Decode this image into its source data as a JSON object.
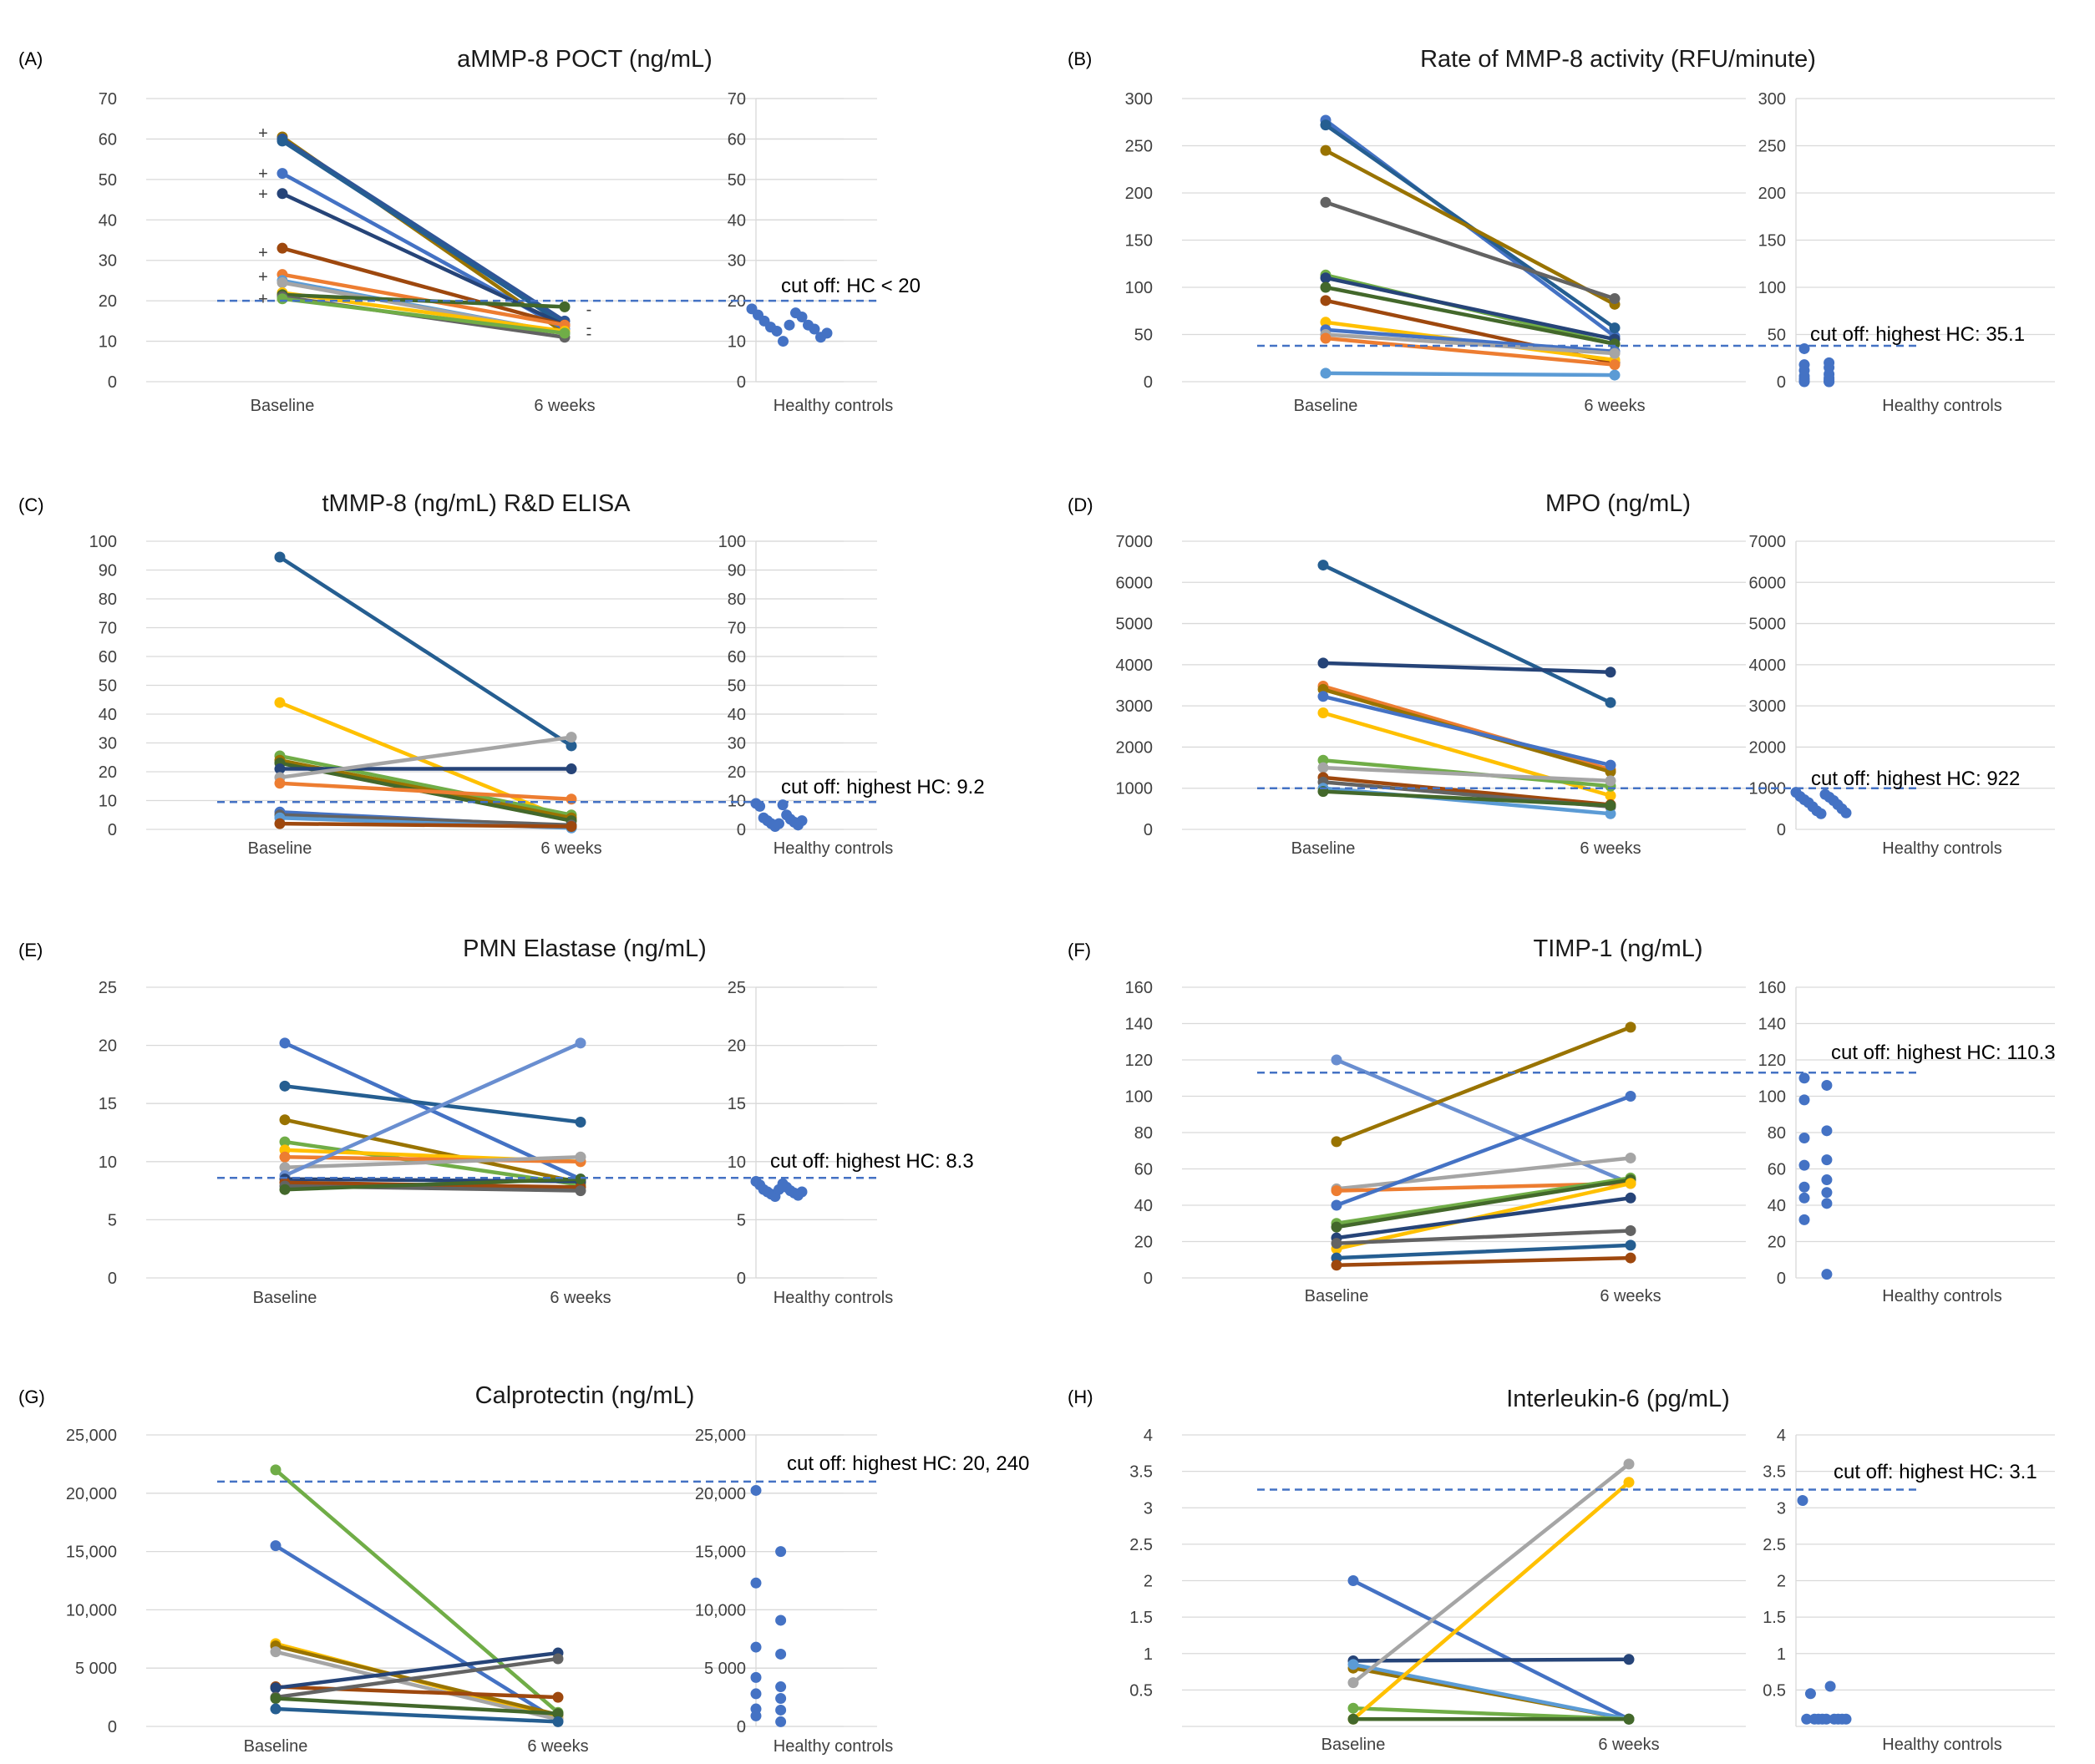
{
  "series_colors": [
    "#4472C4",
    "#ED7D31",
    "#A5A5A5",
    "#FFC000",
    "#5B9BD5",
    "#70AD47",
    "#264478",
    "#9E480E",
    "#636363",
    "#997300",
    "#255E91",
    "#43682B",
    "#698ED0",
    "#F1975A",
    "#7F6000",
    "#2F5597"
  ],
  "hc_color": "#4472C4",
  "cutline_color": "#4472C4",
  "chart_data": [
    {
      "id": "A",
      "letter": "(A)",
      "type": "line",
      "title": "aMMP-8 POCT (ng/mL)",
      "categories": [
        "Baseline",
        "6 weeks"
      ],
      "hc_label": "Healthy controls",
      "ylim": [
        0,
        70
      ],
      "yticks": [
        "0",
        "10",
        "20",
        "30",
        "40",
        "50",
        "60",
        "70"
      ],
      "cutoff": 20,
      "cutoff_label": "cut off: HC < 20",
      "series": [
        {
          "c": 9,
          "v": [
            60.5,
            12
          ]
        },
        {
          "c": 15,
          "v": [
            60,
            15
          ]
        },
        {
          "c": 10,
          "v": [
            59.5,
            14
          ]
        },
        {
          "c": 0,
          "v": [
            51.5,
            13
          ]
        },
        {
          "c": 6,
          "v": [
            46.5,
            14
          ]
        },
        {
          "c": 7,
          "v": [
            33,
            14
          ]
        },
        {
          "c": 1,
          "v": [
            26.5,
            14
          ]
        },
        {
          "c": 4,
          "v": [
            25,
            12
          ]
        },
        {
          "c": 2,
          "v": [
            24.5,
            12
          ]
        },
        {
          "c": 3,
          "v": [
            22,
            12.5
          ]
        },
        {
          "c": 11,
          "v": [
            21.5,
            18.5
          ]
        },
        {
          "c": 8,
          "v": [
            21,
            11
          ]
        },
        {
          "c": 5,
          "v": [
            20.5,
            12
          ]
        }
      ],
      "hc_values": [
        18,
        17,
        16.5,
        16,
        15,
        14,
        13.5,
        13,
        12.5,
        11,
        10,
        12,
        14
      ],
      "plus_values": [
        61.5,
        51.5,
        46.5,
        32,
        26,
        20.5
      ],
      "plus_label": "+",
      "minus_values": [
        18,
        13.5,
        12
      ],
      "minus_label": "-"
    },
    {
      "id": "B",
      "letter": "(B)",
      "type": "line",
      "title": "Rate of MMP-8 activity (RFU/minute)",
      "categories": [
        "Baseline",
        "6 weeks"
      ],
      "hc_label": "Healthy controls",
      "ylim": [
        0,
        300
      ],
      "yticks": [
        "0",
        "50",
        "100",
        "150",
        "200",
        "250",
        "300"
      ],
      "cutoff": 38,
      "cutoff_label": "cut off: highest HC: 35.1",
      "series": [
        {
          "c": 0,
          "v": [
            277,
            48
          ]
        },
        {
          "c": 10,
          "v": [
            272,
            57
          ]
        },
        {
          "c": 9,
          "v": [
            245,
            82
          ]
        },
        {
          "c": 8,
          "v": [
            190,
            88
          ]
        },
        {
          "c": 5,
          "v": [
            113,
            40
          ]
        },
        {
          "c": 6,
          "v": [
            110,
            45
          ]
        },
        {
          "c": 11,
          "v": [
            100,
            40
          ]
        },
        {
          "c": 7,
          "v": [
            86,
            20
          ]
        },
        {
          "c": 3,
          "v": [
            63,
            23
          ]
        },
        {
          "c": 0,
          "v": [
            55,
            32
          ]
        },
        {
          "c": 2,
          "v": [
            50,
            30
          ]
        },
        {
          "c": 1,
          "v": [
            46,
            18
          ]
        },
        {
          "c": 4,
          "v": [
            9,
            7
          ]
        }
      ],
      "hc_values": [
        35,
        20,
        18,
        15,
        12,
        8,
        6,
        4,
        3,
        2,
        1,
        0,
        0,
        0
      ],
      "plus_values": [],
      "plus_label": "+",
      "minus_values": [],
      "minus_label": "-"
    },
    {
      "id": "C",
      "letter": "(C)",
      "type": "line",
      "title": "tMMP-8 (ng/mL) R&D ELISA",
      "categories": [
        "Baseline",
        "6 weeks"
      ],
      "hc_label": "Healthy controls",
      "ylim": [
        0,
        100
      ],
      "yticks": [
        "0",
        "10",
        "20",
        "30",
        "40",
        "50",
        "60",
        "70",
        "80",
        "90",
        "100"
      ],
      "cutoff": 9.5,
      "cutoff_label": "cut off: highest HC: 9.2",
      "series": [
        {
          "c": 10,
          "v": [
            94.5,
            29
          ]
        },
        {
          "c": 3,
          "v": [
            44,
            3
          ]
        },
        {
          "c": 5,
          "v": [
            25.5,
            5
          ]
        },
        {
          "c": 9,
          "v": [
            24,
            4
          ]
        },
        {
          "c": 11,
          "v": [
            23,
            3
          ]
        },
        {
          "c": 6,
          "v": [
            21,
            21
          ]
        },
        {
          "c": 2,
          "v": [
            18,
            32
          ]
        },
        {
          "c": 1,
          "v": [
            16,
            10.5
          ]
        },
        {
          "c": 0,
          "v": [
            6,
            1
          ]
        },
        {
          "c": 8,
          "v": [
            5,
            1.5
          ]
        },
        {
          "c": 4,
          "v": [
            4,
            0.5
          ]
        },
        {
          "c": 7,
          "v": [
            2,
            1
          ]
        }
      ],
      "hc_values": [
        9,
        8.5,
        8,
        5,
        4,
        3.5,
        3,
        2.5,
        2,
        1.5,
        1,
        3,
        2
      ],
      "plus_values": [],
      "plus_label": "+",
      "minus_values": [],
      "minus_label": "-"
    },
    {
      "id": "D",
      "letter": "(D)",
      "type": "line",
      "title": "MPO (ng/mL)",
      "categories": [
        "Baseline",
        "6 weeks"
      ],
      "hc_label": "Healthy controls",
      "ylim": [
        0,
        7000
      ],
      "yticks": [
        "0",
        "1000",
        "2000",
        "3000",
        "4000",
        "5000",
        "6000",
        "7000"
      ],
      "cutoff": 1000,
      "cutoff_label": "cut off: highest HC: 922",
      "series": [
        {
          "c": 10,
          "v": [
            6420,
            3080
          ]
        },
        {
          "c": 6,
          "v": [
            4040,
            3820
          ]
        },
        {
          "c": 1,
          "v": [
            3480,
            1450
          ]
        },
        {
          "c": 9,
          "v": [
            3400,
            1400
          ]
        },
        {
          "c": 0,
          "v": [
            3230,
            1560
          ]
        },
        {
          "c": 3,
          "v": [
            2830,
            820
          ]
        },
        {
          "c": 5,
          "v": [
            1680,
            1050
          ]
        },
        {
          "c": 2,
          "v": [
            1500,
            1180
          ]
        },
        {
          "c": 7,
          "v": [
            1260,
            600
          ]
        },
        {
          "c": 8,
          "v": [
            1150,
            550
          ]
        },
        {
          "c": 4,
          "v": [
            1000,
            380
          ]
        },
        {
          "c": 11,
          "v": [
            920,
            580
          ]
        }
      ],
      "hc_values": [
        900,
        850,
        800,
        780,
        720,
        700,
        650,
        600,
        550,
        500,
        450,
        400,
        380
      ],
      "plus_values": [],
      "plus_label": "+",
      "minus_values": [],
      "minus_label": "-"
    },
    {
      "id": "E",
      "letter": "(E)",
      "type": "line",
      "title": "PMN Elastase (ng/mL)",
      "categories": [
        "Baseline",
        "6 weeks"
      ],
      "hc_label": "Healthy controls",
      "ylim": [
        0,
        25
      ],
      "yticks": [
        "0",
        "5",
        "10",
        "15",
        "20",
        "25"
      ],
      "cutoff": 8.6,
      "cutoff_label": "cut off: highest HC: 8.3",
      "series": [
        {
          "c": 0,
          "v": [
            20.2,
            8.5
          ]
        },
        {
          "c": 10,
          "v": [
            16.5,
            13.4
          ]
        },
        {
          "c": 9,
          "v": [
            13.6,
            8.2
          ]
        },
        {
          "c": 5,
          "v": [
            11.7,
            8.0
          ]
        },
        {
          "c": 3,
          "v": [
            11,
            10
          ]
        },
        {
          "c": 1,
          "v": [
            10.4,
            10
          ]
        },
        {
          "c": 2,
          "v": [
            9.5,
            10.4
          ]
        },
        {
          "c": 12,
          "v": [
            8.8,
            20.2
          ]
        },
        {
          "c": 6,
          "v": [
            8.5,
            8.3
          ]
        },
        {
          "c": 7,
          "v": [
            8.2,
            7.8
          ]
        },
        {
          "c": 8,
          "v": [
            7.9,
            7.5
          ]
        },
        {
          "c": 11,
          "v": [
            7.6,
            8.5
          ]
        }
      ],
      "hc_values": [
        8.3,
        8.1,
        8.0,
        7.8,
        7.6,
        7.5,
        7.4,
        7.3,
        7.2,
        7.1,
        7.0,
        7.4,
        7.6
      ],
      "plus_values": [],
      "plus_label": "+",
      "minus_values": [],
      "minus_label": "-"
    },
    {
      "id": "F",
      "letter": "(F)",
      "type": "line",
      "title": "TIMP-1 (ng/mL)",
      "categories": [
        "Baseline",
        "6 weeks"
      ],
      "hc_label": "Healthy controls",
      "ylim": [
        0,
        160
      ],
      "yticks": [
        "0",
        "20",
        "40",
        "60",
        "80",
        "100",
        "120",
        "140",
        "160"
      ],
      "cutoff": 113,
      "cutoff_label": "cut off: highest HC: 110.3",
      "series": [
        {
          "c": 12,
          "v": [
            120,
            52
          ]
        },
        {
          "c": 9,
          "v": [
            75,
            138
          ]
        },
        {
          "c": 2,
          "v": [
            49,
            66
          ]
        },
        {
          "c": 1,
          "v": [
            48,
            52
          ]
        },
        {
          "c": 0,
          "v": [
            40,
            100
          ]
        },
        {
          "c": 5,
          "v": [
            30,
            55
          ]
        },
        {
          "c": 11,
          "v": [
            28,
            54
          ]
        },
        {
          "c": 3,
          "v": [
            16,
            52
          ]
        },
        {
          "c": 6,
          "v": [
            22,
            44
          ]
        },
        {
          "c": 8,
          "v": [
            19,
            26
          ]
        },
        {
          "c": 10,
          "v": [
            11,
            18
          ]
        },
        {
          "c": 7,
          "v": [
            7,
            11
          ]
        }
      ],
      "hc_values": [
        110,
        106,
        98,
        81,
        77,
        65,
        62,
        54,
        50,
        47,
        44,
        41,
        32,
        2
      ],
      "plus_values": [],
      "plus_label": "+",
      "minus_values": [],
      "minus_label": "-"
    },
    {
      "id": "G",
      "letter": "(G)",
      "type": "line",
      "title": "Calprotectin (ng/mL)",
      "categories": [
        "Baseline",
        "6 weeks"
      ],
      "hc_label": "Healthy controls",
      "ylim": [
        0,
        25000
      ],
      "yticks": [
        "0",
        "5 000",
        "10,000",
        "15,000",
        "20,000",
        "25,000"
      ],
      "cutoff": 21000,
      "cutoff_label": "cut off: highest HC: 20, 240",
      "series": [
        {
          "c": 5,
          "v": [
            22000,
            1200
          ]
        },
        {
          "c": 0,
          "v": [
            15500,
            500
          ]
        },
        {
          "c": 3,
          "v": [
            7100,
            700
          ]
        },
        {
          "c": 9,
          "v": [
            6900,
            1000
          ]
        },
        {
          "c": 2,
          "v": [
            6400,
            600
          ]
        },
        {
          "c": 7,
          "v": [
            3400,
            2500
          ]
        },
        {
          "c": 6,
          "v": [
            3300,
            6300
          ]
        },
        {
          "c": 8,
          "v": [
            2500,
            5800
          ]
        },
        {
          "c": 11,
          "v": [
            2400,
            1100
          ]
        },
        {
          "c": 10,
          "v": [
            1500,
            400
          ]
        }
      ],
      "hc_values": [
        20240,
        15000,
        12300,
        9100,
        6800,
        6200,
        4200,
        3400,
        2800,
        2400,
        1500,
        1400,
        900,
        400
      ],
      "plus_values": [],
      "plus_label": "+",
      "minus_values": [],
      "minus_label": "-"
    },
    {
      "id": "H",
      "letter": "(H)",
      "type": "line",
      "title": "Interleukin-6 (pg/mL)",
      "categories": [
        "Baseline",
        "6 weeks"
      ],
      "hc_label": "Healthy controls",
      "ylim": [
        0,
        4
      ],
      "yticks": [
        "",
        "0.5",
        "1",
        "1.5",
        "2",
        "2.5",
        "3",
        "3.5",
        "4"
      ],
      "cutoff": 3.25,
      "cutoff_label": "cut off: highest HC: 3.1",
      "series": [
        {
          "c": 0,
          "v": [
            2.0,
            0.1
          ]
        },
        {
          "c": 6,
          "v": [
            0.9,
            0.92
          ]
        },
        {
          "c": 9,
          "v": [
            0.8,
            0.1
          ]
        },
        {
          "c": 4,
          "v": [
            0.85,
            0.1
          ]
        },
        {
          "c": 2,
          "v": [
            0.6,
            3.6
          ]
        },
        {
          "c": 5,
          "v": [
            0.25,
            0.1
          ]
        },
        {
          "c": 3,
          "v": [
            0.1,
            3.35
          ]
        },
        {
          "c": 11,
          "v": [
            0.1,
            0.1
          ]
        }
      ],
      "hc_values": [
        3.1,
        0.55,
        0.45,
        0.1,
        0.1,
        0.1,
        0.1,
        0.1,
        0.1,
        0.1,
        0.1,
        0.1
      ],
      "plus_values": [],
      "plus_label": "+",
      "minus_values": [],
      "minus_label": "-"
    }
  ]
}
